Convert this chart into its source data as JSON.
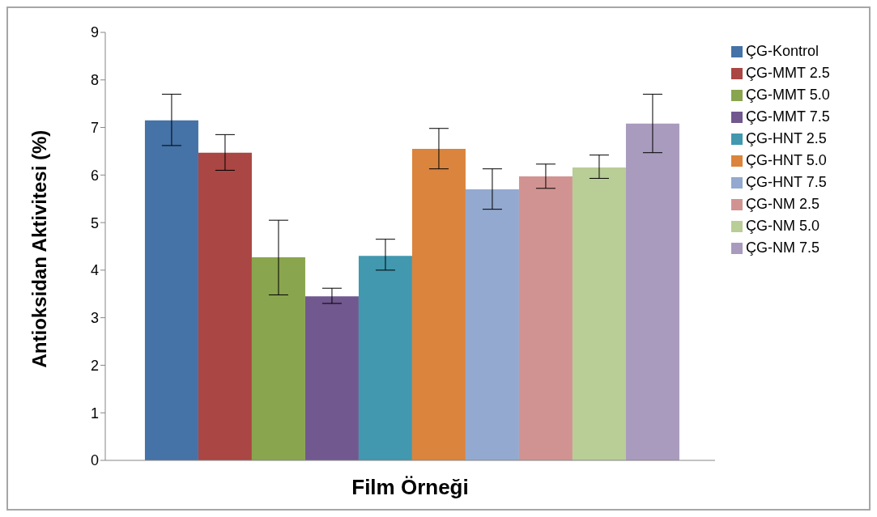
{
  "chart_data": {
    "type": "bar",
    "xlabel": "Film Örneği",
    "ylabel": "Antioksidan Aktivitesi (%)",
    "categories": [
      null
    ],
    "ylim": [
      0,
      9
    ],
    "yticks": [
      0,
      1,
      2,
      3,
      4,
      5,
      6,
      7,
      8,
      9
    ],
    "grid": false,
    "legend": "right",
    "series": [
      {
        "name": "ÇG-Kontrol",
        "color": "#4572a7",
        "values": [
          7.15
        ],
        "errors": [
          [
            6.62,
            7.7
          ]
        ]
      },
      {
        "name": "ÇG-MMT 2.5",
        "color": "#aa4643",
        "values": [
          6.47
        ],
        "errors": [
          [
            6.1,
            6.85
          ]
        ]
      },
      {
        "name": "ÇG-MMT 5.0",
        "color": "#89a54e",
        "values": [
          4.27
        ],
        "errors": [
          [
            3.48,
            5.05
          ]
        ]
      },
      {
        "name": "ÇG-MMT 7.5",
        "color": "#71588f",
        "values": [
          3.45
        ],
        "errors": [
          [
            3.3,
            3.62
          ]
        ]
      },
      {
        "name": "ÇG-HNT 2.5",
        "color": "#4198af",
        "values": [
          4.3
        ],
        "errors": [
          [
            4.0,
            4.65
          ]
        ]
      },
      {
        "name": "ÇG-HNT 5.0",
        "color": "#db843d",
        "values": [
          6.55
        ],
        "errors": [
          [
            6.13,
            6.98
          ]
        ]
      },
      {
        "name": "ÇG-HNT 7.5",
        "color": "#93a9cf",
        "values": [
          5.7
        ],
        "errors": [
          [
            5.28,
            6.13
          ]
        ]
      },
      {
        "name": "ÇG-NM 2.5",
        "color": "#d19392",
        "values": [
          5.97
        ],
        "errors": [
          [
            5.72,
            6.23
          ]
        ]
      },
      {
        "name": "ÇG-NM 5.0",
        "color": "#b9cd96",
        "values": [
          6.16
        ],
        "errors": [
          [
            5.93,
            6.42
          ]
        ]
      },
      {
        "name": "ÇG-NM 7.5",
        "color": "#a99bbd",
        "values": [
          7.08
        ],
        "errors": [
          [
            6.47,
            7.7
          ]
        ]
      }
    ]
  }
}
